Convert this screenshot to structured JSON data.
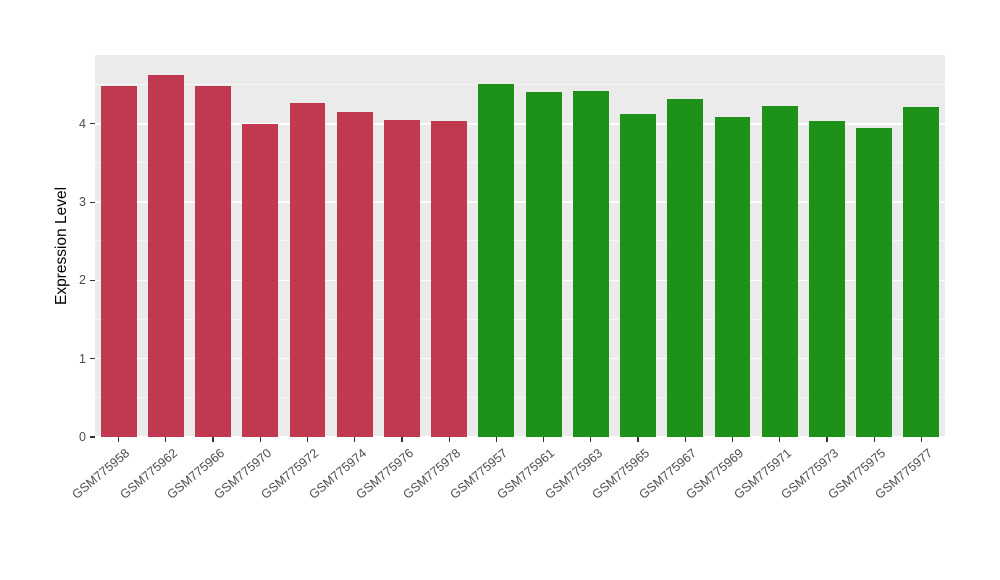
{
  "chart_data": {
    "type": "bar",
    "title": "",
    "ylabel": "Expression Level",
    "xlabel": "",
    "ylim": [
      0,
      4.88
    ],
    "yticks": [
      0,
      1,
      2,
      3,
      4
    ],
    "grid": true,
    "legend_position": "none",
    "panel_background": "#EBEBEB",
    "gridline_color": "#FFFFFF",
    "categories": [
      "GSM775958",
      "GSM775962",
      "GSM775966",
      "GSM775970",
      "GSM775972",
      "GSM775974",
      "GSM775976",
      "GSM775978",
      "GSM775957",
      "GSM775961",
      "GSM775963",
      "GSM775965",
      "GSM775967",
      "GSM775969",
      "GSM775971",
      "GSM775973",
      "GSM775975",
      "GSM775977"
    ],
    "values": [
      4.49,
      4.63,
      4.49,
      4.0,
      4.27,
      4.15,
      4.05,
      4.04,
      4.51,
      4.41,
      4.42,
      4.13,
      4.32,
      4.09,
      4.23,
      4.04,
      3.95,
      4.21
    ],
    "groups": [
      "red",
      "red",
      "red",
      "red",
      "red",
      "red",
      "red",
      "red",
      "green",
      "green",
      "green",
      "green",
      "green",
      "green",
      "green",
      "green",
      "green",
      "green"
    ],
    "colors": {
      "red": "#C13950",
      "green": "#1E9118"
    }
  }
}
